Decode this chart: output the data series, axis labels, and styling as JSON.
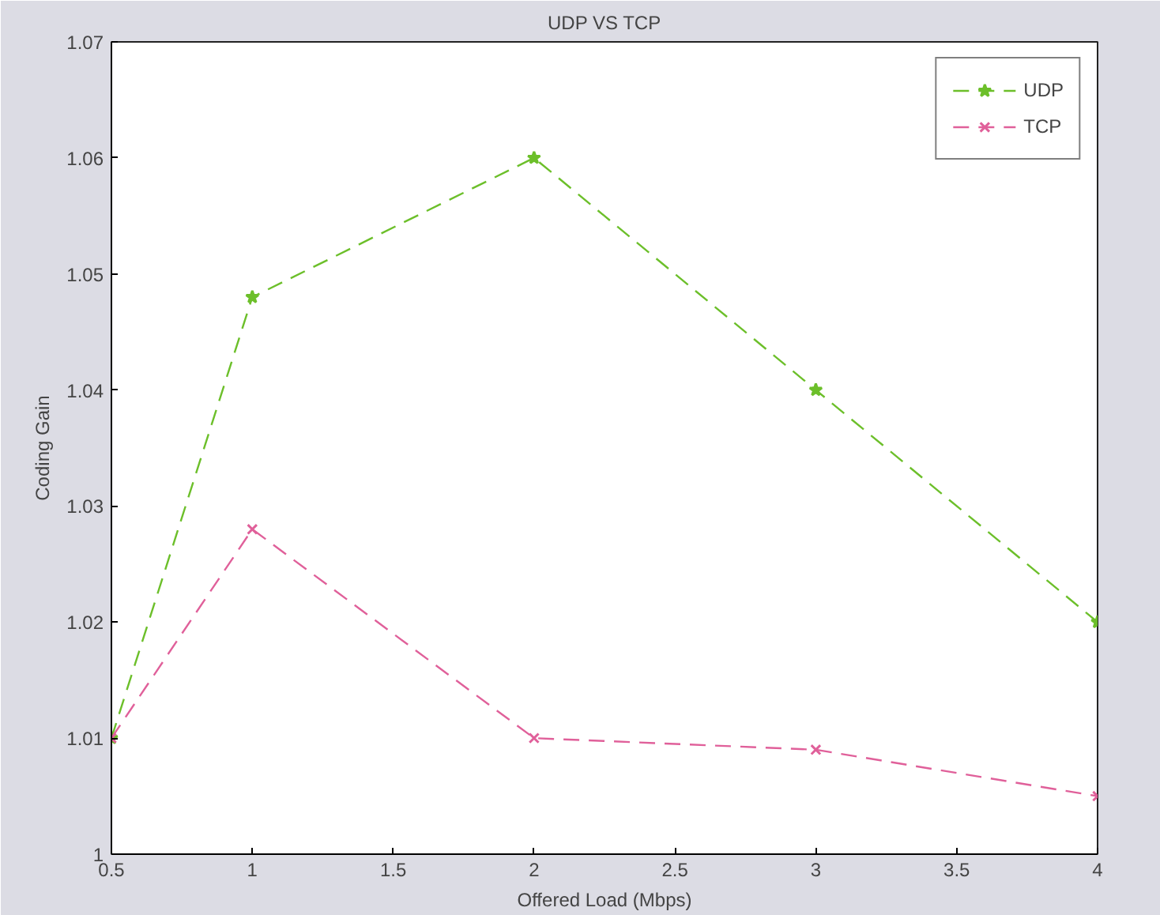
{
  "chart_data": {
    "type": "line",
    "title": "UDP VS TCP",
    "xlabel": "Offered Load (Mbps)",
    "ylabel": "Coding Gain",
    "x": [
      0.5,
      1,
      2,
      3,
      4
    ],
    "series": [
      {
        "name": "UDP",
        "color": "#6cbf2a",
        "values": [
          1.01,
          1.048,
          1.06,
          1.04,
          1.02
        ],
        "marker": "star"
      },
      {
        "name": "TCP",
        "color": "#e0609a",
        "values": [
          1.01,
          1.028,
          1.01,
          1.009,
          1.005
        ],
        "marker": "cross"
      }
    ],
    "xlim": [
      0.5,
      4
    ],
    "xticks": [
      0.5,
      1,
      1.5,
      2,
      2.5,
      3,
      3.5,
      4
    ],
    "ylim": [
      1,
      1.07
    ],
    "yticks": [
      1,
      1.01,
      1.02,
      1.03,
      1.04,
      1.05,
      1.06,
      1.07
    ],
    "grid": false,
    "legend": "top right",
    "line_style": "dashed"
  }
}
